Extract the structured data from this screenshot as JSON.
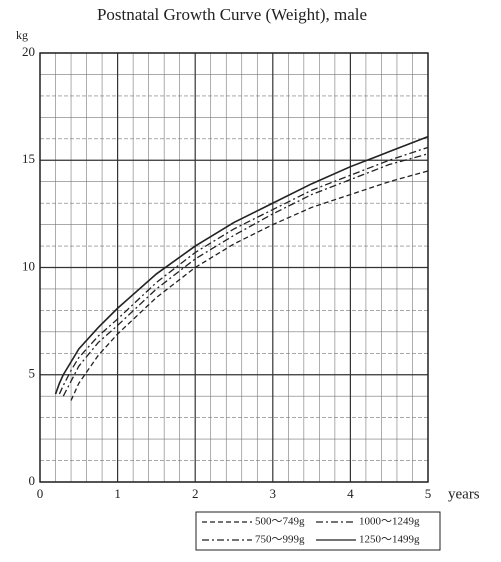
{
  "chart_data": {
    "type": "line",
    "title": "Postnatal Growth Curve (Weight), male",
    "ylabel": "kg",
    "xlabel": "years",
    "x": [
      0.2,
      0.25,
      0.3,
      0.4,
      0.5,
      0.75,
      1,
      1.5,
      2,
      2.5,
      3,
      3.5,
      4,
      4.5,
      5
    ],
    "series": [
      {
        "name": "500〜749g",
        "color": "#222222",
        "dash": "dashed",
        "values": [
          null,
          null,
          null,
          3.8,
          4.6,
          5.9,
          6.9,
          8.6,
          10.0,
          11.1,
          12.0,
          12.8,
          13.4,
          14.0,
          14.5
        ]
      },
      {
        "name": "1000〜1249g",
        "color": "#222222",
        "dash": "dashdot",
        "values": [
          null,
          4.1,
          4.5,
          5.2,
          5.8,
          6.8,
          7.6,
          9.3,
          10.7,
          11.8,
          12.7,
          13.6,
          14.3,
          15.0,
          15.6
        ]
      },
      {
        "name": "750〜999g",
        "color": "#222222",
        "dash": "dashdot",
        "values": [
          null,
          null,
          4.0,
          4.7,
          5.4,
          6.5,
          7.3,
          9.0,
          10.4,
          11.5,
          12.5,
          13.4,
          14.1,
          14.8,
          15.3
        ]
      },
      {
        "name": "1250〜1499g",
        "color": "#222222",
        "dash": "solid",
        "values": [
          4.1,
          4.6,
          5.0,
          5.6,
          6.2,
          7.2,
          8.1,
          9.7,
          11.0,
          12.1,
          13.0,
          13.9,
          14.7,
          15.4,
          16.1
        ]
      }
    ],
    "xlim": [
      0,
      5
    ],
    "ylim": [
      0,
      20
    ],
    "xticks": [
      0,
      1,
      2,
      3,
      4,
      5
    ],
    "yticks": [
      0,
      5,
      10,
      15,
      20
    ],
    "grid": true,
    "legend": "bottom-right"
  }
}
